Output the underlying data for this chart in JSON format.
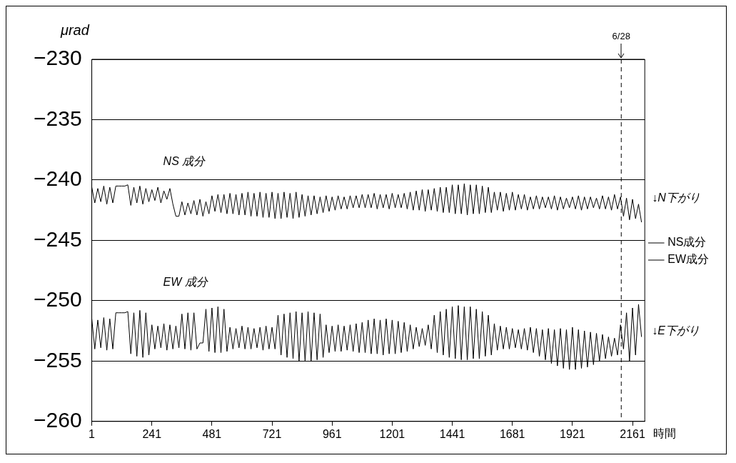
{
  "chart_data": {
    "type": "line",
    "xlabel": "時間",
    "ylabel": "μrad",
    "x": [
      1,
      13,
      25,
      37,
      49,
      61,
      73,
      85,
      97,
      109,
      121,
      133,
      145,
      157,
      169,
      181,
      193,
      205,
      217,
      229,
      241,
      253,
      265,
      277,
      289,
      301,
      313,
      325,
      337,
      349,
      361,
      373,
      385,
      397,
      409,
      421,
      433,
      445,
      457,
      469,
      481,
      493,
      505,
      517,
      529,
      541,
      553,
      565,
      577,
      589,
      601,
      613,
      625,
      637,
      649,
      661,
      673,
      685,
      697,
      709,
      721,
      733,
      745,
      757,
      769,
      781,
      793,
      805,
      817,
      829,
      841,
      853,
      865,
      877,
      889,
      901,
      913,
      925,
      937,
      949,
      961,
      973,
      985,
      997,
      1009,
      1021,
      1033,
      1045,
      1057,
      1069,
      1081,
      1093,
      1105,
      1117,
      1129,
      1141,
      1153,
      1165,
      1177,
      1189,
      1201,
      1213,
      1225,
      1237,
      1249,
      1261,
      1273,
      1285,
      1297,
      1309,
      1321,
      1333,
      1345,
      1357,
      1369,
      1381,
      1393,
      1405,
      1417,
      1429,
      1441,
      1453,
      1465,
      1477,
      1489,
      1501,
      1513,
      1525,
      1537,
      1549,
      1561,
      1573,
      1585,
      1597,
      1609,
      1621,
      1633,
      1645,
      1657,
      1669,
      1681,
      1693,
      1705,
      1717,
      1729,
      1741,
      1753,
      1765,
      1777,
      1789,
      1801,
      1813,
      1825,
      1837,
      1849,
      1861,
      1873,
      1885,
      1897,
      1909,
      1921,
      1933,
      1945,
      1957,
      1969,
      1981,
      1993,
      2005,
      2017,
      2029,
      2041,
      2053,
      2065,
      2077,
      2089,
      2101,
      2113,
      2125,
      2137,
      2149,
      2161,
      2173,
      2185,
      2197
    ],
    "series": [
      {
        "name": "NS成分",
        "color": "#000000",
        "values": [
          -240.6,
          -241.9,
          -240.7,
          -241.8,
          -240.5,
          -242.0,
          -240.6,
          -241.9,
          -240.5,
          -240.5,
          -240.5,
          -240.5,
          -240.4,
          -242.1,
          -240.6,
          -241.9,
          -240.5,
          -242.0,
          -240.7,
          -241.8,
          -240.8,
          -241.7,
          -240.6,
          -241.9,
          -240.9,
          -241.6,
          -240.7,
          -242.0,
          -243.0,
          -243.0,
          -241.8,
          -242.9,
          -241.9,
          -242.8,
          -241.7,
          -242.9,
          -241.6,
          -243.0,
          -241.8,
          -242.8,
          -241.3,
          -242.6,
          -241.2,
          -242.7,
          -241.2,
          -242.8,
          -241.1,
          -242.8,
          -241.2,
          -242.9,
          -241.1,
          -242.9,
          -241.0,
          -243.0,
          -241.1,
          -243.0,
          -241.0,
          -243.1,
          -241.1,
          -243.1,
          -241.0,
          -243.2,
          -241.1,
          -243.2,
          -241.0,
          -243.1,
          -241.1,
          -243.2,
          -241.0,
          -243.1,
          -241.2,
          -243.0,
          -241.3,
          -242.9,
          -241.3,
          -242.8,
          -241.4,
          -242.7,
          -241.3,
          -242.6,
          -241.4,
          -242.5,
          -241.3,
          -242.4,
          -241.4,
          -242.4,
          -241.3,
          -242.3,
          -241.3,
          -242.3,
          -241.2,
          -242.3,
          -241.2,
          -242.3,
          -241.1,
          -242.4,
          -241.2,
          -242.3,
          -241.2,
          -242.4,
          -241.1,
          -242.3,
          -241.2,
          -242.3,
          -241.1,
          -242.4,
          -241.0,
          -242.5,
          -240.9,
          -242.5,
          -240.8,
          -242.6,
          -240.8,
          -242.5,
          -240.7,
          -242.6,
          -240.6,
          -242.7,
          -240.6,
          -242.7,
          -240.4,
          -242.8,
          -240.4,
          -242.8,
          -240.3,
          -242.9,
          -240.4,
          -242.8,
          -240.4,
          -242.8,
          -240.5,
          -242.7,
          -240.6,
          -242.7,
          -241.0,
          -242.5,
          -241.0,
          -242.6,
          -241.1,
          -242.5,
          -241.0,
          -242.5,
          -241.2,
          -242.4,
          -241.2,
          -242.5,
          -241.4,
          -242.4,
          -241.3,
          -242.4,
          -241.4,
          -242.3,
          -241.4,
          -242.4,
          -241.3,
          -242.5,
          -241.4,
          -242.4,
          -241.5,
          -242.3,
          -241.4,
          -242.4,
          -241.3,
          -242.5,
          -241.4,
          -242.4,
          -241.4,
          -242.3,
          -241.5,
          -242.4,
          -241.3,
          -242.4,
          -241.4,
          -242.5,
          -241.2,
          -242.4,
          -241.4,
          -243.0,
          -241.5,
          -243.3,
          -241.6,
          -243.2,
          -242.0,
          -243.5
        ]
      },
      {
        "name": "EW成分",
        "color": "#000000",
        "values": [
          -251.5,
          -254.0,
          -251.6,
          -253.9,
          -251.4,
          -254.1,
          -251.5,
          -254.0,
          -251.0,
          -251.0,
          -251.0,
          -251.0,
          -250.9,
          -254.4,
          -251.0,
          -254.6,
          -250.8,
          -254.7,
          -251.0,
          -254.5,
          -252.0,
          -254.0,
          -252.1,
          -253.9,
          -251.9,
          -254.1,
          -252.0,
          -254.0,
          -252.1,
          -253.9,
          -251.1,
          -254.0,
          -251.0,
          -254.1,
          -251.0,
          -254.0,
          -253.5,
          -253.5,
          -250.7,
          -254.2,
          -250.6,
          -254.3,
          -250.5,
          -254.3,
          -250.7,
          -254.2,
          -252.2,
          -254.0,
          -252.3,
          -253.9,
          -252.1,
          -254.0,
          -252.2,
          -254.0,
          -252.3,
          -253.9,
          -252.2,
          -254.1,
          -252.1,
          -254.0,
          -252.2,
          -254.0,
          -251.2,
          -254.5,
          -251.1,
          -254.7,
          -251.0,
          -254.8,
          -250.9,
          -255.0,
          -251.0,
          -255.0,
          -250.9,
          -255.0,
          -251.0,
          -254.9,
          -251.1,
          -254.7,
          -252.0,
          -254.3,
          -252.1,
          -254.2,
          -252.0,
          -254.2,
          -252.1,
          -254.1,
          -252.0,
          -254.2,
          -251.9,
          -254.3,
          -251.8,
          -254.3,
          -251.6,
          -254.4,
          -251.5,
          -254.4,
          -251.6,
          -254.5,
          -251.5,
          -254.4,
          -251.6,
          -254.4,
          -251.7,
          -254.3,
          -251.8,
          -254.2,
          -252.0,
          -254.0,
          -252.2,
          -253.8,
          -252.3,
          -253.7,
          -252.0,
          -254.0,
          -251.2,
          -254.3,
          -250.9,
          -254.5,
          -250.7,
          -254.7,
          -250.5,
          -254.8,
          -250.4,
          -254.9,
          -250.5,
          -254.9,
          -250.5,
          -254.8,
          -250.7,
          -254.8,
          -250.9,
          -254.6,
          -251.2,
          -254.5,
          -251.9,
          -254.1,
          -252.1,
          -254.0,
          -252.2,
          -254.0,
          -252.3,
          -253.9,
          -252.4,
          -254.0,
          -252.3,
          -254.1,
          -252.2,
          -254.3,
          -252.3,
          -254.6,
          -252.4,
          -254.9,
          -252.3,
          -255.2,
          -252.4,
          -255.4,
          -252.3,
          -255.6,
          -252.4,
          -255.7,
          -252.2,
          -255.7,
          -252.4,
          -255.6,
          -252.5,
          -255.5,
          -252.6,
          -255.3,
          -252.7,
          -255.0,
          -252.8,
          -254.8,
          -253.0,
          -254.6,
          -253.1,
          -254.5,
          -252.0,
          -254.0,
          -251.0,
          -255.0,
          -250.6,
          -254.5,
          -250.3,
          -253.0
        ]
      }
    ],
    "xlim": [
      1,
      2210
    ],
    "xticks": [
      1,
      241,
      481,
      721,
      961,
      1201,
      1441,
      1681,
      1921,
      2161
    ],
    "ylim": [
      -260,
      -230
    ],
    "yticks": [
      -260,
      -255,
      -250,
      -245,
      -240,
      -235,
      -230
    ],
    "grid": "y",
    "legend": "right",
    "line_style": "solid",
    "ref_lines": [
      {
        "axis": "x",
        "value": 2116,
        "color": "#000000",
        "line_style": "dashed"
      }
    ],
    "annotations": [
      "NS 成分",
      "EW 成分",
      "↓N下がり",
      "↓E下がり",
      "6/28"
    ]
  }
}
